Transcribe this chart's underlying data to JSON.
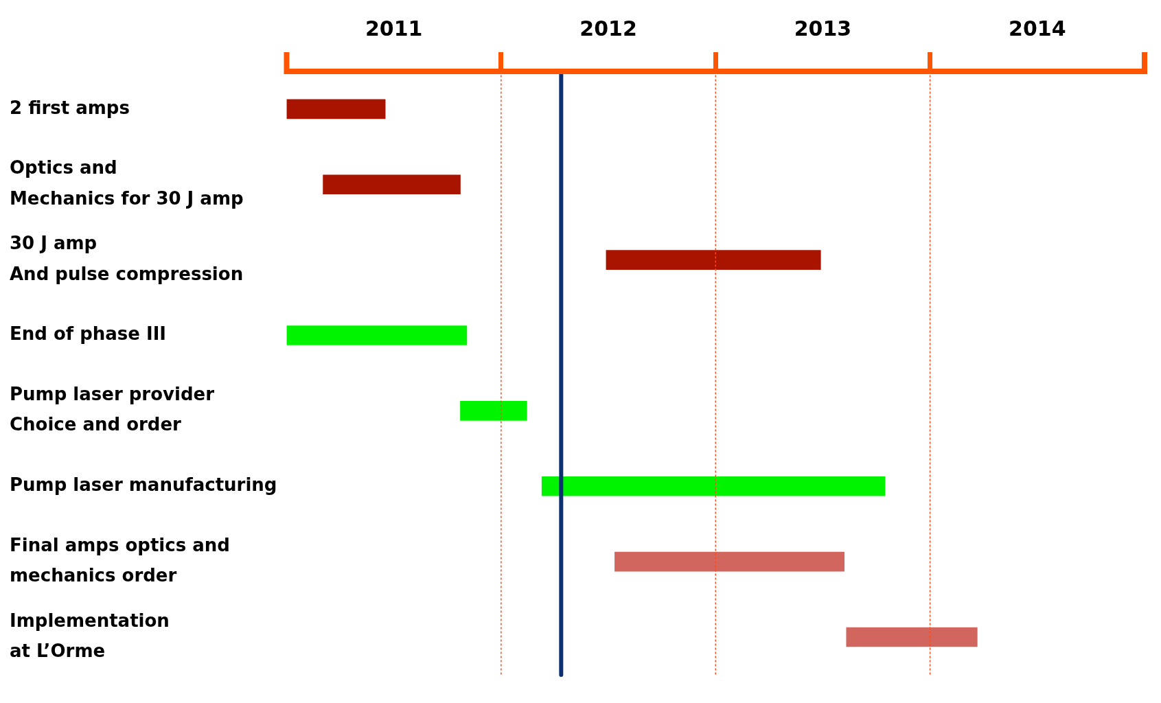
{
  "chart_data": {
    "type": "bar",
    "orientation": "horizontal",
    "categories": [
      "2 first amps",
      "Optics and\nMechanics for 30 J amp",
      "30 J amp\nAnd pulse compression",
      "End of phase III",
      "Pump laser provider\nChoice and order",
      "Pump laser manufacturing",
      "Final amps optics and\nmechanics order",
      "Implementation\nat L’Orme"
    ],
    "base": [
      2011.0,
      2011.17,
      2012.49,
      2011.0,
      2011.81,
      2012.19,
      2012.53,
      2013.61
    ],
    "values": [
      0.46,
      0.64,
      1.0,
      0.84,
      0.31,
      1.6,
      1.07,
      0.61
    ],
    "colors": [
      "#a81400",
      "#a81400",
      "#a81400",
      "#00f400",
      "#00f400",
      "#00f400",
      "#d0665e",
      "#d0665e"
    ],
    "xlim": [
      2011,
      2015
    ],
    "xticks": [
      {
        "value": 2011.5,
        "label": "2011"
      },
      {
        "value": 2012,
        "label": null
      },
      {
        "value": 2012.5,
        "label": "2012"
      },
      {
        "value": 2013,
        "label": null
      },
      {
        "value": 2013.5,
        "label": "2013"
      },
      {
        "value": 2014,
        "label": null
      },
      {
        "value": 2014.5,
        "label": "2014"
      }
    ],
    "ref_lines": [
      {
        "axis": "x",
        "value": 2012,
        "color": "#ff4a1a",
        "line_style": "dotted"
      },
      {
        "axis": "x",
        "value": 2013,
        "color": "#ff4a1a",
        "line_style": "dotted"
      },
      {
        "axis": "x",
        "value": 2014,
        "color": "#ff4a1a",
        "line_style": "dotted"
      },
      {
        "axis": "x",
        "value": 2012.28,
        "color": "#0d2f73",
        "line_style": "solid"
      }
    ]
  }
}
